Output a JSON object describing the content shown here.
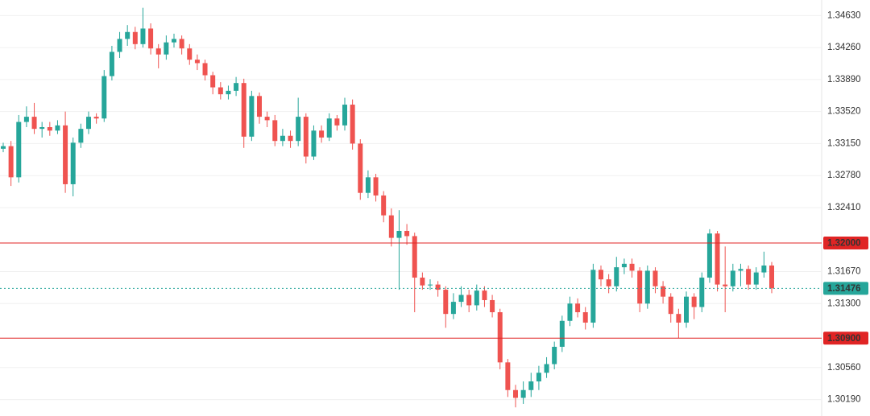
{
  "chart_data": {
    "type": "candlestick",
    "ylim": [
      1.3,
      1.3481
    ],
    "yticks": [
      {
        "value": 1.3463,
        "label": "1.34630"
      },
      {
        "value": 1.3426,
        "label": "1.34260"
      },
      {
        "value": 1.3389,
        "label": "1.33890"
      },
      {
        "value": 1.3352,
        "label": "1.33520"
      },
      {
        "value": 1.3315,
        "label": "1.33150"
      },
      {
        "value": 1.3278,
        "label": "1.32780"
      },
      {
        "value": 1.3241,
        "label": "1.32410"
      },
      {
        "value": 1.3167,
        "label": "1.31670"
      },
      {
        "value": 1.313,
        "label": "1.31300"
      },
      {
        "value": 1.3056,
        "label": "1.30560"
      },
      {
        "value": 1.3019,
        "label": "1.30190"
      }
    ],
    "grid": true,
    "up_color": "#26a69a",
    "down_color": "#ef5350",
    "price_lines": [
      {
        "value": 1.32,
        "label": "1.32000",
        "color": "#e02424",
        "style": "solid"
      },
      {
        "value": 1.31476,
        "label": "1.31476",
        "color": "#26a69a",
        "style": "dotted"
      },
      {
        "value": 1.309,
        "label": "1.30900",
        "color": "#e02424",
        "style": "solid"
      }
    ],
    "open": [
      1.3309,
      1.3312,
      1.3276,
      1.334,
      1.3346,
      1.3332,
      1.3334,
      1.333,
      1.3336,
      1.3268,
      1.3316,
      1.3332,
      1.3346,
      1.3344,
      1.3393,
      1.3421,
      1.3436,
      1.3444,
      1.343,
      1.3448,
      1.3425,
      1.3418,
      1.3432,
      1.3436,
      1.3425,
      1.3412,
      1.3408,
      1.3394,
      1.338,
      1.3372,
      1.3376,
      1.3385,
      1.3323,
      1.337,
      1.3346,
      1.3342,
      1.3318,
      1.3324,
      1.3318,
      1.3346,
      1.33,
      1.333,
      1.3322,
      1.3344,
      1.3336,
      1.336,
      1.3315,
      1.3258,
      1.3276,
      1.3255,
      1.3232,
      1.3206,
      1.3214,
      1.3208,
      1.316,
      1.3151,
      1.3152,
      1.3146,
      1.3118,
      1.3132,
      1.314,
      1.3128,
      1.3145,
      1.3134,
      1.312,
      1.3062,
      1.303,
      1.3021,
      1.303,
      1.304,
      1.305,
      1.306,
      1.308,
      1.311,
      1.313,
      1.312,
      1.3108,
      1.3169,
      1.3158,
      1.315,
      1.3172,
      1.3176,
      1.3168,
      1.313,
      1.3168,
      1.315,
      1.3138,
      1.3118,
      1.3108,
      1.3138,
      1.3126,
      1.316,
      1.3211,
      1.3152,
      1.315,
      1.3168,
      1.317,
      1.3152,
      1.3166,
      1.3174
    ],
    "high": [
      1.3316,
      1.3318,
      1.3348,
      1.3358,
      1.3362,
      1.334,
      1.334,
      1.3342,
      1.3352,
      1.3322,
      1.3338,
      1.3352,
      1.335,
      1.34,
      1.3428,
      1.3444,
      1.3452,
      1.345,
      1.3472,
      1.3454,
      1.343,
      1.344,
      1.3442,
      1.344,
      1.343,
      1.3418,
      1.3412,
      1.3398,
      1.3386,
      1.3382,
      1.3392,
      1.339,
      1.3376,
      1.3374,
      1.3352,
      1.3348,
      1.3332,
      1.333,
      1.3368,
      1.335,
      1.3336,
      1.3336,
      1.335,
      1.3348,
      1.3368,
      1.3366,
      1.332,
      1.3284,
      1.328,
      1.326,
      1.324,
      1.3238,
      1.3222,
      1.3212,
      1.3166,
      1.3158,
      1.3156,
      1.315,
      1.3142,
      1.315,
      1.3146,
      1.3152,
      1.315,
      1.314,
      1.3124,
      1.3066,
      1.3036,
      1.304,
      1.305,
      1.3058,
      1.3068,
      1.3086,
      1.3116,
      1.3138,
      1.3136,
      1.3126,
      1.3176,
      1.3174,
      1.3164,
      1.3184,
      1.3182,
      1.3182,
      1.3172,
      1.3174,
      1.3172,
      1.3156,
      1.3142,
      1.3124,
      1.3144,
      1.3142,
      1.3166,
      1.3216,
      1.3214,
      1.3196,
      1.3176,
      1.3176,
      1.3174,
      1.3172,
      1.319,
      1.3178
    ],
    "low": [
      1.3305,
      1.3266,
      1.327,
      1.3334,
      1.3326,
      1.3322,
      1.3324,
      1.3326,
      1.3258,
      1.3254,
      1.331,
      1.3326,
      1.3338,
      1.334,
      1.3388,
      1.3414,
      1.3428,
      1.3424,
      1.3426,
      1.3418,
      1.3402,
      1.3412,
      1.3426,
      1.3418,
      1.3406,
      1.34,
      1.3388,
      1.3372,
      1.3366,
      1.3366,
      1.337,
      1.331,
      1.3318,
      1.3338,
      1.3334,
      1.3312,
      1.3312,
      1.331,
      1.3312,
      1.3292,
      1.3296,
      1.3316,
      1.3318,
      1.333,
      1.333,
      1.3308,
      1.325,
      1.3252,
      1.3248,
      1.3224,
      1.3196,
      1.3146,
      1.3198,
      1.312,
      1.3146,
      1.3146,
      1.3138,
      1.3102,
      1.3112,
      1.3126,
      1.312,
      1.3122,
      1.3126,
      1.3114,
      1.3054,
      1.3022,
      1.301,
      1.3014,
      1.3022,
      1.303,
      1.3044,
      1.3054,
      1.3074,
      1.3104,
      1.3114,
      1.31,
      1.3102,
      1.315,
      1.3142,
      1.3144,
      1.3164,
      1.316,
      1.312,
      1.3124,
      1.3142,
      1.313,
      1.3108,
      1.309,
      1.3102,
      1.3112,
      1.312,
      1.3154,
      1.3144,
      1.312,
      1.3144,
      1.315,
      1.3146,
      1.3146,
      1.316,
      1.3142
    ],
    "close": [
      1.3312,
      1.3276,
      1.334,
      1.3346,
      1.3332,
      1.3334,
      1.333,
      1.3336,
      1.3268,
      1.3316,
      1.3332,
      1.3346,
      1.3344,
      1.3393,
      1.3421,
      1.3436,
      1.3444,
      1.343,
      1.3448,
      1.3425,
      1.3418,
      1.3432,
      1.3436,
      1.3425,
      1.3412,
      1.3408,
      1.3394,
      1.338,
      1.3372,
      1.3376,
      1.3385,
      1.3323,
      1.337,
      1.3346,
      1.3342,
      1.3318,
      1.3324,
      1.3318,
      1.3346,
      1.33,
      1.333,
      1.3322,
      1.3344,
      1.3336,
      1.336,
      1.3315,
      1.3258,
      1.3276,
      1.3255,
      1.3232,
      1.3206,
      1.3214,
      1.3208,
      1.316,
      1.3151,
      1.3152,
      1.3146,
      1.3118,
      1.3132,
      1.314,
      1.3128,
      1.3145,
      1.3134,
      1.312,
      1.3062,
      1.303,
      1.3021,
      1.303,
      1.304,
      1.305,
      1.306,
      1.308,
      1.311,
      1.313,
      1.312,
      1.3108,
      1.3169,
      1.3158,
      1.315,
      1.3172,
      1.3176,
      1.3168,
      1.313,
      1.3168,
      1.315,
      1.3138,
      1.3118,
      1.3108,
      1.3138,
      1.3126,
      1.316,
      1.3211,
      1.3152,
      1.315,
      1.3168,
      1.317,
      1.3152,
      1.3166,
      1.3174,
      1.31476
    ]
  }
}
